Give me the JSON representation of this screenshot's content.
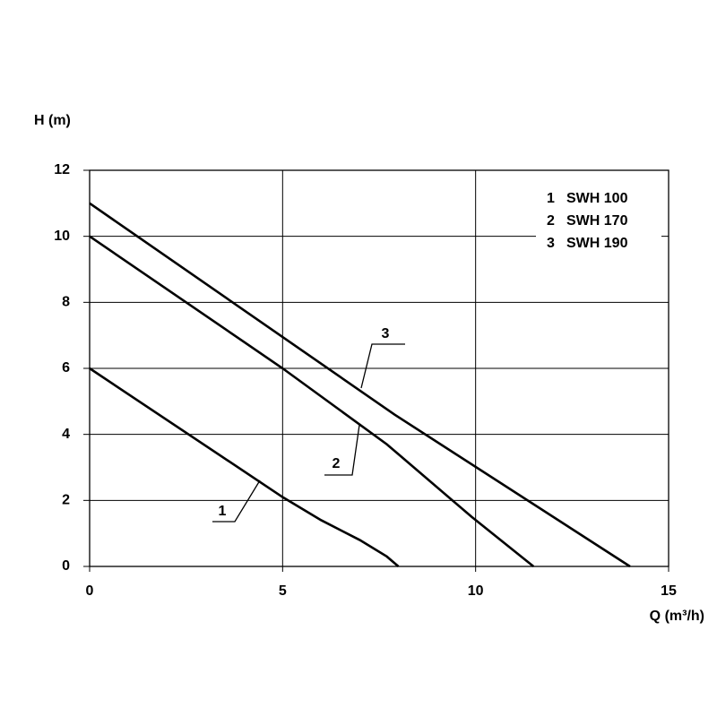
{
  "chart_data": {
    "type": "line",
    "y_label": "H (m)",
    "x_label": "Q (m³/h)",
    "xlim": [
      0,
      15
    ],
    "xticks": [
      0,
      5,
      10,
      15
    ],
    "ylim": [
      0,
      12
    ],
    "yticks": [
      0,
      2,
      4,
      6,
      8,
      10,
      12
    ],
    "grid": true,
    "legend": "upper right",
    "series": [
      {
        "label": "1",
        "name": "SWH 100",
        "color": "#000000",
        "x": [
          0,
          5,
          6,
          7,
          7.7,
          8
        ],
        "values": [
          6,
          2.1,
          1.4,
          0.8,
          0.3,
          0
        ]
      },
      {
        "label": "2",
        "name": "SWH 170",
        "color": "#000000",
        "x": [
          0,
          5,
          7.7,
          9.9,
          11.5
        ],
        "values": [
          10,
          6,
          3.7,
          1.5,
          0
        ]
      },
      {
        "label": "3",
        "name": "SWH 190",
        "color": "#000000",
        "x": [
          0,
          7.9,
          14
        ],
        "values": [
          11,
          4.6,
          0
        ]
      }
    ]
  }
}
